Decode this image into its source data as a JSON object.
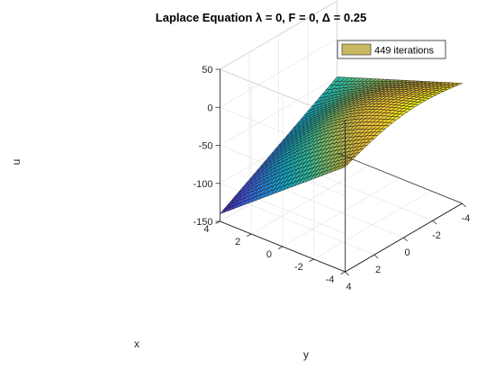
{
  "chart_data": {
    "type": "surface",
    "title": "Laplace Equation λ = 0, F = 0, Δ = 0.25",
    "xlabel": "x",
    "ylabel": "y",
    "zlabel": "u",
    "xlim": [
      -4,
      4
    ],
    "ylim": [
      -4,
      4
    ],
    "zlim": [
      -150,
      50
    ],
    "xticks": [
      "-4",
      "-2",
      "0",
      "2",
      "4"
    ],
    "yticks": [
      "4",
      "2",
      "0",
      "-2",
      "-4"
    ],
    "zticks": [
      "50",
      "0",
      "-50",
      "-100",
      "-150"
    ],
    "grid": true,
    "colormap": "parula",
    "grid_spacing": 0.25,
    "legend": {
      "label": "449 iterations",
      "placement": "top-right",
      "color": "#c7b861"
    },
    "surface_samples": {
      "description_axes": "u(x, y)",
      "corners": [
        {
          "x": -4,
          "y": 4,
          "u": -12
        },
        {
          "x": -4,
          "y": -4,
          "u": 8
        },
        {
          "x": 4,
          "y": -4,
          "u": -50
        },
        {
          "x": 4,
          "y": 4,
          "u": -140
        }
      ]
    }
  }
}
